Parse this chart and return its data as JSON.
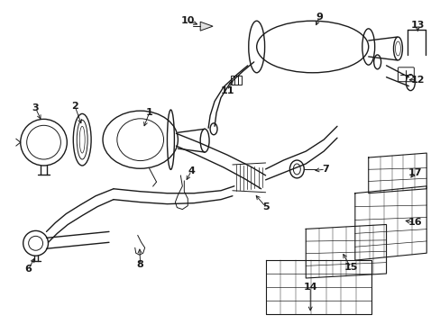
{
  "background_color": "#ffffff",
  "line_color": "#1a1a1a",
  "figure_width": 4.89,
  "figure_height": 3.6,
  "dpi": 100,
  "label_fontsize": 8.0
}
